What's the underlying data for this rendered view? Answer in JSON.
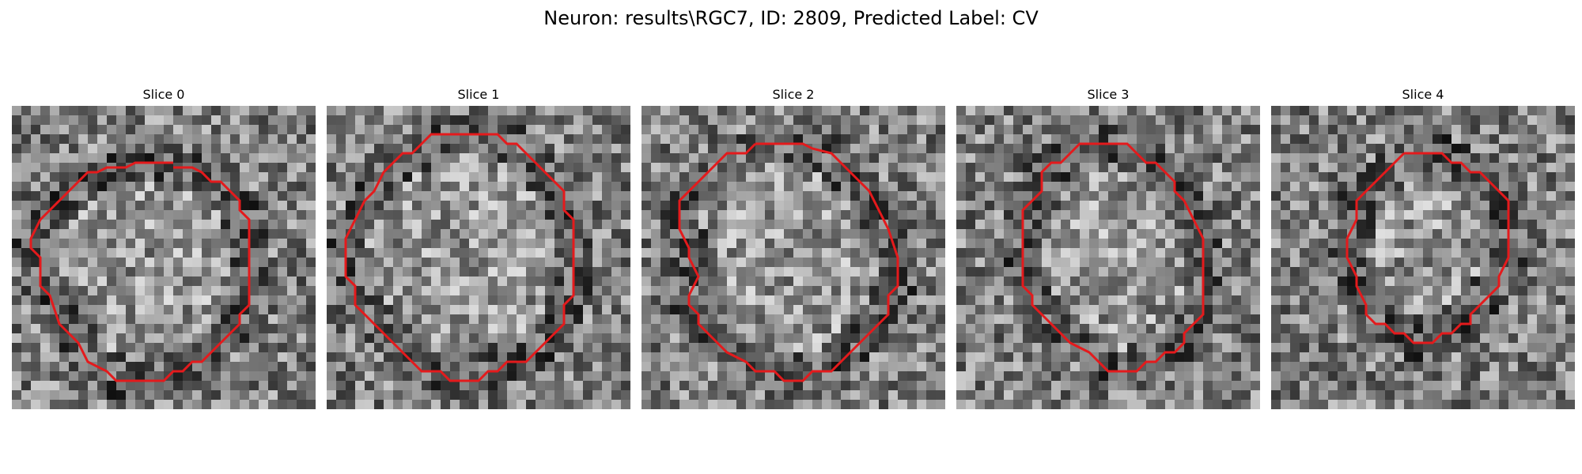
{
  "figure": {
    "title": "Neuron: results\\RGC7, ID: 2809, Predicted Label: CV"
  },
  "panels": [
    {
      "title": "Slice 0",
      "image": "grayscale-noise-patch",
      "contour_color": "#e41a1c",
      "contour": [
        [
          17,
          6.5
        ],
        [
          19,
          6.5
        ],
        [
          20,
          7
        ],
        [
          21,
          8
        ],
        [
          22,
          8
        ],
        [
          23,
          9
        ],
        [
          24,
          10
        ],
        [
          24,
          11
        ],
        [
          25,
          12
        ],
        [
          25,
          16
        ],
        [
          25,
          21
        ],
        [
          24,
          22
        ],
        [
          24,
          23
        ],
        [
          23,
          24
        ],
        [
          22,
          25
        ],
        [
          21,
          26
        ],
        [
          20,
          27
        ],
        [
          19,
          27
        ],
        [
          18,
          28
        ],
        [
          17,
          28
        ],
        [
          16,
          29
        ],
        [
          11,
          29
        ],
        [
          10,
          28
        ],
        [
          8,
          27
        ],
        [
          7,
          25
        ],
        [
          6,
          24
        ],
        [
          5,
          23
        ],
        [
          4,
          20
        ],
        [
          3,
          19
        ],
        [
          3,
          16
        ],
        [
          2,
          15
        ],
        [
          2,
          14
        ],
        [
          3,
          12
        ],
        [
          4,
          11
        ],
        [
          5,
          10
        ],
        [
          6,
          9
        ],
        [
          7,
          8
        ],
        [
          8,
          7
        ],
        [
          9,
          7
        ],
        [
          10,
          6.5
        ],
        [
          12,
          6.5
        ],
        [
          13,
          6
        ],
        [
          17,
          6
        ]
      ]
    },
    {
      "title": "Slice 1",
      "image": "grayscale-noise-patch",
      "contour_color": "#e41a1c",
      "contour": [
        [
          14,
          3
        ],
        [
          18,
          3
        ],
        [
          19,
          4
        ],
        [
          20,
          4
        ],
        [
          21,
          5
        ],
        [
          22,
          6
        ],
        [
          23,
          7
        ],
        [
          24,
          8
        ],
        [
          25,
          9
        ],
        [
          25,
          11
        ],
        [
          26,
          12
        ],
        [
          26,
          20
        ],
        [
          25,
          21
        ],
        [
          25,
          23
        ],
        [
          24,
          24
        ],
        [
          23,
          25
        ],
        [
          22,
          26
        ],
        [
          21,
          27
        ],
        [
          19,
          27
        ],
        [
          18,
          28
        ],
        [
          17,
          28
        ],
        [
          16,
          29
        ],
        [
          13,
          29
        ],
        [
          12,
          28
        ],
        [
          10,
          28
        ],
        [
          9,
          27
        ],
        [
          8,
          26
        ],
        [
          7,
          25
        ],
        [
          6,
          24
        ],
        [
          5,
          23
        ],
        [
          4,
          22
        ],
        [
          3,
          21
        ],
        [
          3,
          19
        ],
        [
          2,
          18
        ],
        [
          2,
          14
        ],
        [
          3,
          12
        ],
        [
          4,
          10
        ],
        [
          5,
          9
        ],
        [
          6,
          7
        ],
        [
          7,
          6
        ],
        [
          8,
          5
        ],
        [
          9,
          5
        ],
        [
          10,
          4
        ],
        [
          11,
          3
        ],
        [
          14,
          3
        ]
      ]
    },
    {
      "title": "Slice 2",
      "image": "grayscale-noise-patch",
      "contour_color": "#e41a1c",
      "contour": [
        [
          12,
          4
        ],
        [
          17,
          4
        ],
        [
          18,
          4.5
        ],
        [
          20,
          5
        ],
        [
          21,
          6
        ],
        [
          22,
          7
        ],
        [
          23,
          8
        ],
        [
          24,
          9
        ],
        [
          25,
          11
        ],
        [
          26,
          13
        ],
        [
          27,
          16
        ],
        [
          27,
          19
        ],
        [
          26,
          20
        ],
        [
          26,
          22
        ],
        [
          25,
          23
        ],
        [
          24,
          24
        ],
        [
          23,
          25
        ],
        [
          22,
          26
        ],
        [
          21,
          27
        ],
        [
          20,
          28
        ],
        [
          18,
          28
        ],
        [
          17,
          29
        ],
        [
          15,
          29
        ],
        [
          14,
          28
        ],
        [
          12,
          28
        ],
        [
          11,
          27
        ],
        [
          9,
          26
        ],
        [
          8,
          25
        ],
        [
          7,
          24
        ],
        [
          6,
          23
        ],
        [
          6,
          22
        ],
        [
          5,
          21
        ],
        [
          5,
          20
        ],
        [
          6,
          18
        ],
        [
          5,
          16
        ],
        [
          5,
          15
        ],
        [
          4,
          13
        ],
        [
          4,
          10
        ],
        [
          5,
          9
        ],
        [
          6,
          8
        ],
        [
          7,
          7
        ],
        [
          8,
          6
        ],
        [
          9,
          5
        ],
        [
          11,
          5
        ],
        [
          12,
          4
        ]
      ]
    },
    {
      "title": "Slice 3",
      "image": "grayscale-noise-patch",
      "contour_color": "#e41a1c",
      "contour": [
        [
          14,
          4
        ],
        [
          18,
          4
        ],
        [
          19,
          5
        ],
        [
          20,
          6
        ],
        [
          21,
          6
        ],
        [
          22,
          7
        ],
        [
          23,
          8
        ],
        [
          23,
          9
        ],
        [
          24,
          10
        ],
        [
          25,
          12
        ],
        [
          26,
          14
        ],
        [
          26,
          20
        ],
        [
          26,
          22
        ],
        [
          25,
          23
        ],
        [
          24,
          24
        ],
        [
          24,
          25
        ],
        [
          23,
          26
        ],
        [
          22,
          26
        ],
        [
          21,
          27
        ],
        [
          20,
          27
        ],
        [
          19,
          28
        ],
        [
          16,
          28
        ],
        [
          15,
          27
        ],
        [
          14,
          26
        ],
        [
          12,
          25
        ],
        [
          11,
          24
        ],
        [
          10,
          23
        ],
        [
          9,
          22
        ],
        [
          8,
          21
        ],
        [
          8,
          20
        ],
        [
          7,
          19
        ],
        [
          7,
          11
        ],
        [
          8,
          10
        ],
        [
          9,
          9
        ],
        [
          9,
          7
        ],
        [
          10,
          6
        ],
        [
          11,
          6
        ],
        [
          12,
          5
        ],
        [
          13,
          4
        ],
        [
          14,
          4
        ]
      ]
    },
    {
      "title": "Slice 4",
      "image": "grayscale-noise-patch",
      "contour_color": "#e41a1c",
      "contour": [
        [
          14,
          5
        ],
        [
          18,
          5
        ],
        [
          19,
          6
        ],
        [
          20,
          6
        ],
        [
          21,
          7
        ],
        [
          22,
          7
        ],
        [
          23,
          8
        ],
        [
          24,
          9
        ],
        [
          25,
          10
        ],
        [
          25,
          16
        ],
        [
          24,
          18
        ],
        [
          24,
          19
        ],
        [
          23,
          20
        ],
        [
          22,
          21
        ],
        [
          21,
          22
        ],
        [
          21,
          23
        ],
        [
          20,
          23
        ],
        [
          19,
          24
        ],
        [
          18,
          24
        ],
        [
          17,
          25
        ],
        [
          15,
          25
        ],
        [
          14,
          24
        ],
        [
          13,
          24
        ],
        [
          12,
          23
        ],
        [
          11,
          23
        ],
        [
          10,
          22
        ],
        [
          10,
          21
        ],
        [
          9,
          19
        ],
        [
          9,
          18
        ],
        [
          8,
          16
        ],
        [
          8,
          14
        ],
        [
          9,
          12
        ],
        [
          9,
          10
        ],
        [
          10,
          9
        ],
        [
          11,
          8
        ],
        [
          12,
          7
        ],
        [
          13,
          6
        ],
        [
          14,
          5
        ]
      ]
    }
  ]
}
